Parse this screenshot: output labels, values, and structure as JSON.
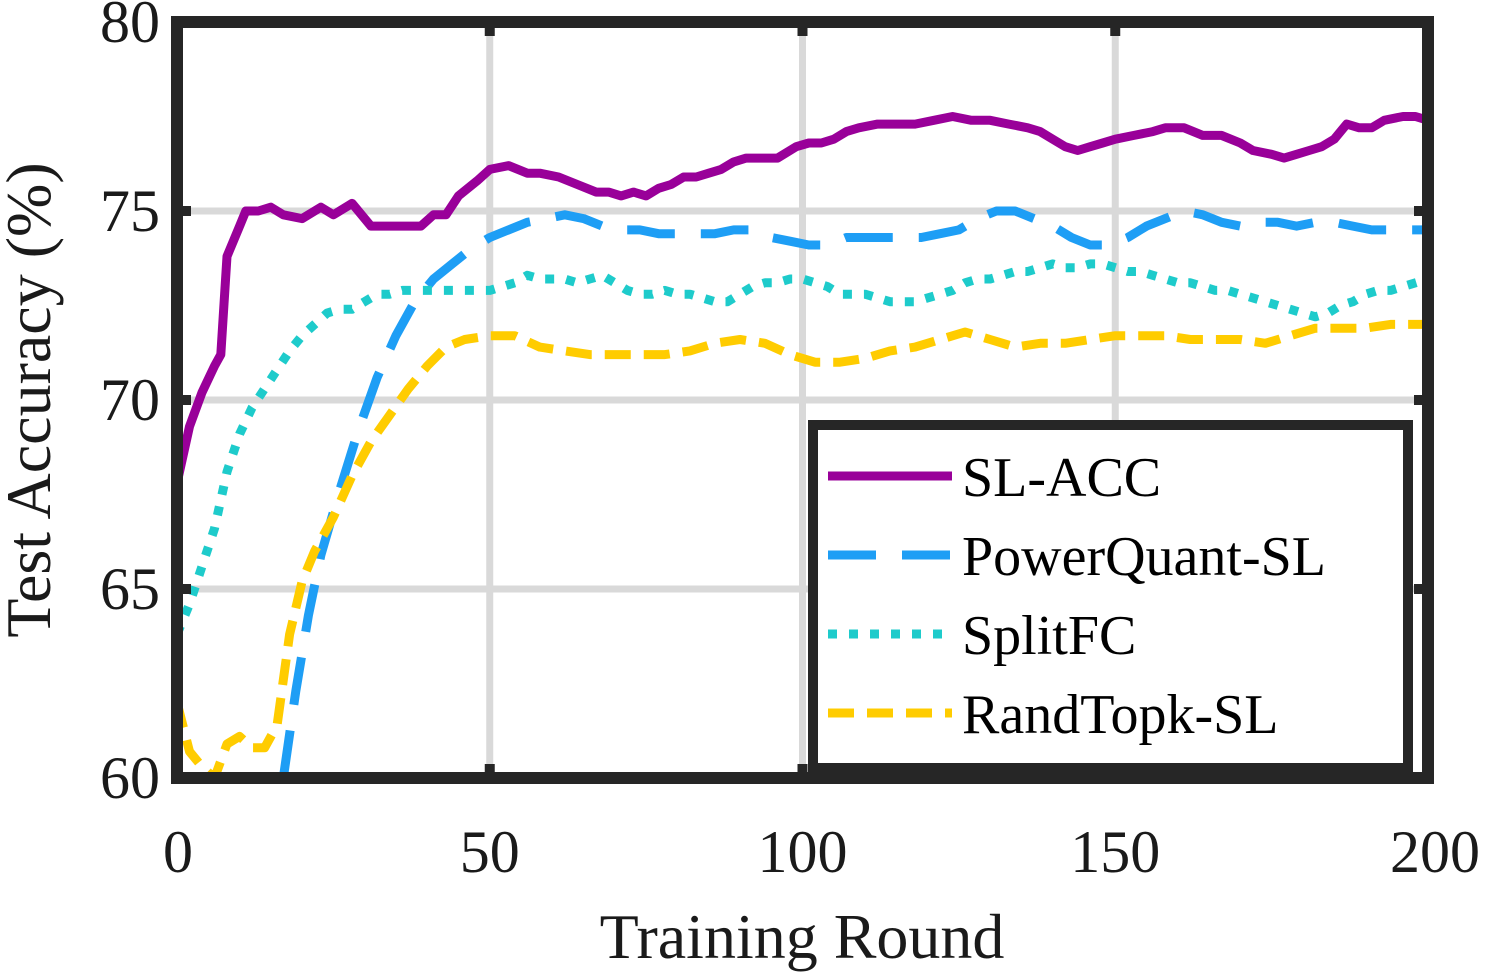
{
  "chart_data": {
    "type": "line",
    "title": "",
    "xlabel": "Training Round",
    "ylabel": "Test Accuracy (%)",
    "xlim": [
      0,
      200
    ],
    "ylim": [
      60,
      80
    ],
    "xticks": [
      "0",
      "50",
      "100",
      "150",
      "200"
    ],
    "yticks": [
      "60",
      "65",
      "70",
      "75",
      "80"
    ],
    "grid": true,
    "legend_position": "bottom-right",
    "series": [
      {
        "name": "SL-ACC",
        "color": "#990099",
        "dash": "solid",
        "points": [
          [
            0,
            67.8
          ],
          [
            2,
            69.3
          ],
          [
            4,
            70.2
          ],
          [
            6,
            70.9
          ],
          [
            7,
            71.2
          ],
          [
            8,
            73.8
          ],
          [
            10,
            74.6
          ],
          [
            11,
            75.0
          ],
          [
            13,
            75.0
          ],
          [
            15,
            75.1
          ],
          [
            17,
            74.9
          ],
          [
            20,
            74.8
          ],
          [
            23,
            75.1
          ],
          [
            25,
            74.9
          ],
          [
            28,
            75.2
          ],
          [
            31,
            74.6
          ],
          [
            33,
            74.6
          ],
          [
            36,
            74.6
          ],
          [
            39,
            74.6
          ],
          [
            41,
            74.9
          ],
          [
            43,
            74.9
          ],
          [
            45,
            75.4
          ],
          [
            48,
            75.8
          ],
          [
            50,
            76.1
          ],
          [
            53,
            76.2
          ],
          [
            56,
            76.0
          ],
          [
            58,
            76.0
          ],
          [
            61,
            75.9
          ],
          [
            64,
            75.7
          ],
          [
            67,
            75.5
          ],
          [
            69,
            75.5
          ],
          [
            71,
            75.4
          ],
          [
            73,
            75.5
          ],
          [
            75,
            75.4
          ],
          [
            77,
            75.6
          ],
          [
            79,
            75.7
          ],
          [
            81,
            75.9
          ],
          [
            83,
            75.9
          ],
          [
            85,
            76.0
          ],
          [
            87,
            76.1
          ],
          [
            89,
            76.3
          ],
          [
            91,
            76.4
          ],
          [
            93,
            76.4
          ],
          [
            96,
            76.4
          ],
          [
            99,
            76.7
          ],
          [
            101,
            76.8
          ],
          [
            103,
            76.8
          ],
          [
            105,
            76.9
          ],
          [
            107,
            77.1
          ],
          [
            109,
            77.2
          ],
          [
            112,
            77.3
          ],
          [
            115,
            77.3
          ],
          [
            118,
            77.3
          ],
          [
            121,
            77.4
          ],
          [
            124,
            77.5
          ],
          [
            127,
            77.4
          ],
          [
            130,
            77.4
          ],
          [
            133,
            77.3
          ],
          [
            136,
            77.2
          ],
          [
            138,
            77.1
          ],
          [
            140,
            76.9
          ],
          [
            142,
            76.7
          ],
          [
            144,
            76.6
          ],
          [
            146,
            76.7
          ],
          [
            148,
            76.8
          ],
          [
            150,
            76.9
          ],
          [
            153,
            77.0
          ],
          [
            156,
            77.1
          ],
          [
            158,
            77.2
          ],
          [
            161,
            77.2
          ],
          [
            164,
            77.0
          ],
          [
            167,
            77.0
          ],
          [
            170,
            76.8
          ],
          [
            172,
            76.6
          ],
          [
            175,
            76.5
          ],
          [
            177,
            76.4
          ],
          [
            179,
            76.5
          ],
          [
            181,
            76.6
          ],
          [
            183,
            76.7
          ],
          [
            185,
            76.9
          ],
          [
            187,
            77.3
          ],
          [
            189,
            77.2
          ],
          [
            191,
            77.2
          ],
          [
            193,
            77.4
          ],
          [
            196,
            77.5
          ],
          [
            198,
            77.5
          ],
          [
            200,
            77.4
          ]
        ]
      },
      {
        "name": "PowerQuant-SL",
        "color": "#1e9ef5",
        "dash": "long-dash",
        "points": [
          [
            17,
            60.0
          ],
          [
            19,
            62.3
          ],
          [
            21,
            64.3
          ],
          [
            23,
            65.9
          ],
          [
            26,
            67.6
          ],
          [
            29,
            69.2
          ],
          [
            32,
            70.6
          ],
          [
            35,
            71.7
          ],
          [
            38,
            72.6
          ],
          [
            41,
            73.2
          ],
          [
            44,
            73.6
          ],
          [
            47,
            74.0
          ],
          [
            50,
            74.3
          ],
          [
            53,
            74.5
          ],
          [
            56,
            74.7
          ],
          [
            59,
            74.8
          ],
          [
            62,
            74.9
          ],
          [
            65,
            74.8
          ],
          [
            68,
            74.6
          ],
          [
            71,
            74.5
          ],
          [
            74,
            74.5
          ],
          [
            77,
            74.4
          ],
          [
            80,
            74.4
          ],
          [
            83,
            74.4
          ],
          [
            86,
            74.4
          ],
          [
            89,
            74.5
          ],
          [
            92,
            74.5
          ],
          [
            95,
            74.3
          ],
          [
            98,
            74.2
          ],
          [
            101,
            74.1
          ],
          [
            104,
            74.1
          ],
          [
            107,
            74.3
          ],
          [
            110,
            74.3
          ],
          [
            113,
            74.3
          ],
          [
            116,
            74.3
          ],
          [
            119,
            74.3
          ],
          [
            122,
            74.4
          ],
          [
            125,
            74.5
          ],
          [
            128,
            74.8
          ],
          [
            131,
            75.0
          ],
          [
            134,
            75.0
          ],
          [
            137,
            74.8
          ],
          [
            140,
            74.6
          ],
          [
            143,
            74.3
          ],
          [
            146,
            74.1
          ],
          [
            149,
            74.1
          ],
          [
            152,
            74.3
          ],
          [
            155,
            74.6
          ],
          [
            158,
            74.8
          ],
          [
            161,
            75.0
          ],
          [
            164,
            74.9
          ],
          [
            167,
            74.7
          ],
          [
            170,
            74.6
          ],
          [
            173,
            74.7
          ],
          [
            176,
            74.7
          ],
          [
            179,
            74.6
          ],
          [
            182,
            74.7
          ],
          [
            185,
            74.7
          ],
          [
            188,
            74.6
          ],
          [
            191,
            74.5
          ],
          [
            194,
            74.5
          ],
          [
            197,
            74.5
          ],
          [
            200,
            74.5
          ]
        ]
      },
      {
        "name": "SplitFC",
        "color": "#1ecbcb",
        "dash": "dotted",
        "points": [
          [
            0,
            63.8
          ],
          [
            2,
            64.6
          ],
          [
            4,
            65.6
          ],
          [
            6,
            66.6
          ],
          [
            8,
            68.1
          ],
          [
            10,
            69.1
          ],
          [
            12,
            69.8
          ],
          [
            14,
            70.3
          ],
          [
            16,
            70.8
          ],
          [
            18,
            71.3
          ],
          [
            20,
            71.7
          ],
          [
            22,
            72.0
          ],
          [
            24,
            72.3
          ],
          [
            26,
            72.4
          ],
          [
            28,
            72.4
          ],
          [
            30,
            72.6
          ],
          [
            32,
            72.8
          ],
          [
            34,
            72.8
          ],
          [
            36,
            72.9
          ],
          [
            38,
            72.9
          ],
          [
            40,
            72.9
          ],
          [
            42,
            72.9
          ],
          [
            44,
            72.9
          ],
          [
            46,
            72.9
          ],
          [
            48,
            72.9
          ],
          [
            50,
            72.9
          ],
          [
            52,
            73.0
          ],
          [
            54,
            73.1
          ],
          [
            56,
            73.3
          ],
          [
            58,
            73.2
          ],
          [
            60,
            73.2
          ],
          [
            62,
            73.2
          ],
          [
            64,
            73.1
          ],
          [
            66,
            73.2
          ],
          [
            68,
            73.3
          ],
          [
            70,
            73.1
          ],
          [
            72,
            72.9
          ],
          [
            74,
            72.8
          ],
          [
            76,
            72.8
          ],
          [
            78,
            72.9
          ],
          [
            80,
            72.8
          ],
          [
            82,
            72.8
          ],
          [
            84,
            72.7
          ],
          [
            86,
            72.6
          ],
          [
            88,
            72.6
          ],
          [
            90,
            72.8
          ],
          [
            92,
            73.0
          ],
          [
            94,
            73.1
          ],
          [
            96,
            73.1
          ],
          [
            98,
            73.2
          ],
          [
            100,
            73.2
          ],
          [
            102,
            73.1
          ],
          [
            104,
            73.0
          ],
          [
            106,
            72.8
          ],
          [
            108,
            72.8
          ],
          [
            110,
            72.8
          ],
          [
            112,
            72.7
          ],
          [
            114,
            72.6
          ],
          [
            116,
            72.6
          ],
          [
            118,
            72.6
          ],
          [
            120,
            72.7
          ],
          [
            122,
            72.8
          ],
          [
            124,
            72.9
          ],
          [
            126,
            73.1
          ],
          [
            128,
            73.2
          ],
          [
            130,
            73.2
          ],
          [
            132,
            73.3
          ],
          [
            134,
            73.4
          ],
          [
            136,
            73.4
          ],
          [
            138,
            73.5
          ],
          [
            140,
            73.6
          ],
          [
            142,
            73.5
          ],
          [
            144,
            73.5
          ],
          [
            146,
            73.6
          ],
          [
            148,
            73.6
          ],
          [
            150,
            73.5
          ],
          [
            152,
            73.4
          ],
          [
            154,
            73.4
          ],
          [
            156,
            73.3
          ],
          [
            158,
            73.2
          ],
          [
            160,
            73.1
          ],
          [
            162,
            73.1
          ],
          [
            164,
            73.0
          ],
          [
            166,
            72.9
          ],
          [
            168,
            72.9
          ],
          [
            170,
            72.8
          ],
          [
            172,
            72.7
          ],
          [
            174,
            72.6
          ],
          [
            176,
            72.5
          ],
          [
            178,
            72.4
          ],
          [
            180,
            72.3
          ],
          [
            182,
            72.2
          ],
          [
            184,
            72.3
          ],
          [
            186,
            72.5
          ],
          [
            188,
            72.6
          ],
          [
            190,
            72.8
          ],
          [
            192,
            72.9
          ],
          [
            194,
            72.9
          ],
          [
            196,
            73.0
          ],
          [
            198,
            73.1
          ],
          [
            200,
            73.2
          ]
        ]
      },
      {
        "name": "RandTopk-SL",
        "color": "#ffcc00",
        "dash": "dashed",
        "points": [
          [
            0,
            62.0
          ],
          [
            2,
            60.7
          ],
          [
            4,
            60.3
          ],
          [
            6,
            60.0
          ],
          [
            8,
            60.9
          ],
          [
            10,
            61.1
          ],
          [
            12,
            60.8
          ],
          [
            14,
            60.8
          ],
          [
            16,
            61.4
          ],
          [
            18,
            63.8
          ],
          [
            20,
            65.2
          ],
          [
            22,
            66.0
          ],
          [
            25,
            66.9
          ],
          [
            28,
            68.0
          ],
          [
            31,
            68.9
          ],
          [
            34,
            69.6
          ],
          [
            37,
            70.3
          ],
          [
            40,
            70.9
          ],
          [
            43,
            71.4
          ],
          [
            46,
            71.6
          ],
          [
            50,
            71.7
          ],
          [
            54,
            71.7
          ],
          [
            58,
            71.4
          ],
          [
            62,
            71.3
          ],
          [
            66,
            71.2
          ],
          [
            70,
            71.2
          ],
          [
            74,
            71.2
          ],
          [
            78,
            71.2
          ],
          [
            82,
            71.3
          ],
          [
            86,
            71.5
          ],
          [
            90,
            71.6
          ],
          [
            94,
            71.5
          ],
          [
            98,
            71.2
          ],
          [
            102,
            71.0
          ],
          [
            106,
            71.0
          ],
          [
            110,
            71.1
          ],
          [
            114,
            71.3
          ],
          [
            118,
            71.4
          ],
          [
            122,
            71.6
          ],
          [
            126,
            71.8
          ],
          [
            130,
            71.6
          ],
          [
            134,
            71.4
          ],
          [
            138,
            71.5
          ],
          [
            142,
            71.5
          ],
          [
            146,
            71.6
          ],
          [
            150,
            71.7
          ],
          [
            154,
            71.7
          ],
          [
            158,
            71.7
          ],
          [
            162,
            71.6
          ],
          [
            166,
            71.6
          ],
          [
            170,
            71.6
          ],
          [
            174,
            71.5
          ],
          [
            178,
            71.7
          ],
          [
            182,
            71.9
          ],
          [
            186,
            71.9
          ],
          [
            190,
            71.9
          ],
          [
            194,
            72.0
          ],
          [
            197,
            72.0
          ],
          [
            200,
            72.0
          ]
        ]
      }
    ]
  }
}
